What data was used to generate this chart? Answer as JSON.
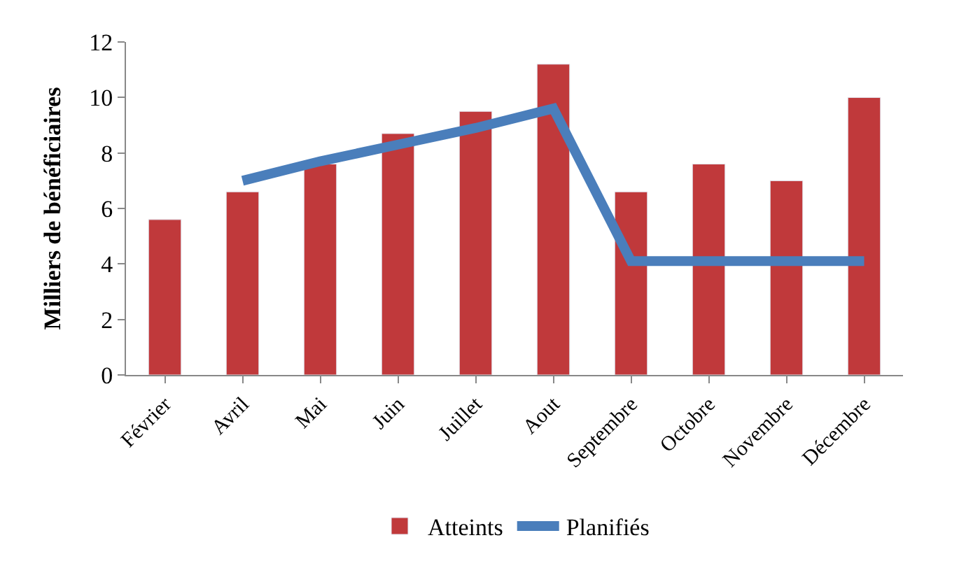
{
  "chart_data": {
    "type": "bar",
    "ylabel": "Milliers de bénéficiaires",
    "categories": [
      "Février",
      "Avril",
      "Mai",
      "Juin",
      "Juillet",
      "Aout",
      "Septembre",
      "Octobre",
      "Novembre",
      "Décembre"
    ],
    "series": [
      {
        "name": "Atteints",
        "color": "#c0393b",
        "values": [
          5.6,
          6.6,
          7.6,
          8.7,
          9.5,
          11.2,
          6.6,
          7.6,
          7.0,
          10.0
        ]
      },
      {
        "name": "Planifiés",
        "type": "line",
        "color": "#4a7ebb",
        "values": [
          null,
          7.0,
          7.7,
          8.3,
          8.9,
          9.6,
          4.1,
          4.1,
          4.1,
          4.1
        ]
      }
    ],
    "ylim": [
      0,
      12
    ],
    "yticks": [
      0,
      2,
      4,
      6,
      8,
      10,
      12
    ],
    "legend": "bottom",
    "marker": "none",
    "line_style": "solid"
  }
}
